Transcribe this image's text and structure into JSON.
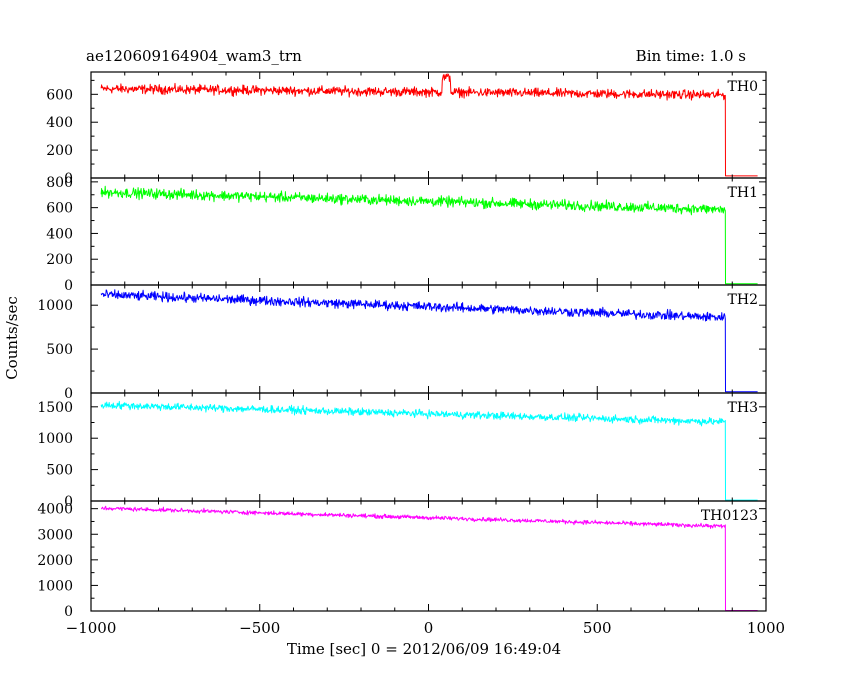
{
  "header": {
    "title": "ae120609164904_wam3_trn",
    "bin_time": "Bin time: 1.0 s"
  },
  "chart_data": {
    "type": "line",
    "title": "ae120609164904_wam3_trn",
    "xlabel": "Time [sec] 0 = 2012/06/09 16:49:04",
    "ylabel": "Counts/sec",
    "xlim": [
      -1000,
      1000
    ],
    "x_ticks": [
      -1000,
      -500,
      0,
      500,
      1000
    ],
    "x_tick_labels": [
      "−1000",
      "−500",
      "0",
      "500",
      "1000"
    ],
    "drop_time": 880,
    "data_range": [
      -970,
      975
    ],
    "panels": [
      {
        "label": "TH0",
        "color": "#ff0000",
        "ylim": [
          0,
          760
        ],
        "yticks": [
          0,
          200,
          400,
          600
        ],
        "trend": [
          [
            -970,
            640
          ],
          [
            880,
            595
          ]
        ],
        "noise": 25,
        "flare": {
          "x": [
            40,
            65
          ],
          "value": 720
        },
        "after_value": 15
      },
      {
        "label": "TH1",
        "color": "#00ff00",
        "ylim": [
          0,
          830
        ],
        "yticks": [
          0,
          200,
          400,
          600,
          800
        ],
        "trend": [
          [
            -970,
            720
          ],
          [
            880,
            585
          ]
        ],
        "noise": 30,
        "after_value": 10
      },
      {
        "label": "TH2",
        "color": "#0000ff",
        "ylim": [
          0,
          1230
        ],
        "yticks": [
          0,
          500,
          1000
        ],
        "trend": [
          [
            -970,
            1120
          ],
          [
            880,
            860
          ]
        ],
        "noise": 40,
        "after_value": 15
      },
      {
        "label": "TH3",
        "color": "#00ffff",
        "ylim": [
          0,
          1720
        ],
        "yticks": [
          0,
          500,
          1000,
          1500
        ],
        "trend": [
          [
            -970,
            1530
          ],
          [
            880,
            1260
          ]
        ],
        "noise": 45,
        "after_value": 15
      },
      {
        "label": "TH0123",
        "color": "#ff00ff",
        "ylim": [
          0,
          4300
        ],
        "yticks": [
          0,
          1000,
          2000,
          3000,
          4000
        ],
        "trend": [
          [
            -970,
            4020
          ],
          [
            880,
            3310
          ]
        ],
        "noise": 60,
        "after_value": 20
      }
    ]
  }
}
